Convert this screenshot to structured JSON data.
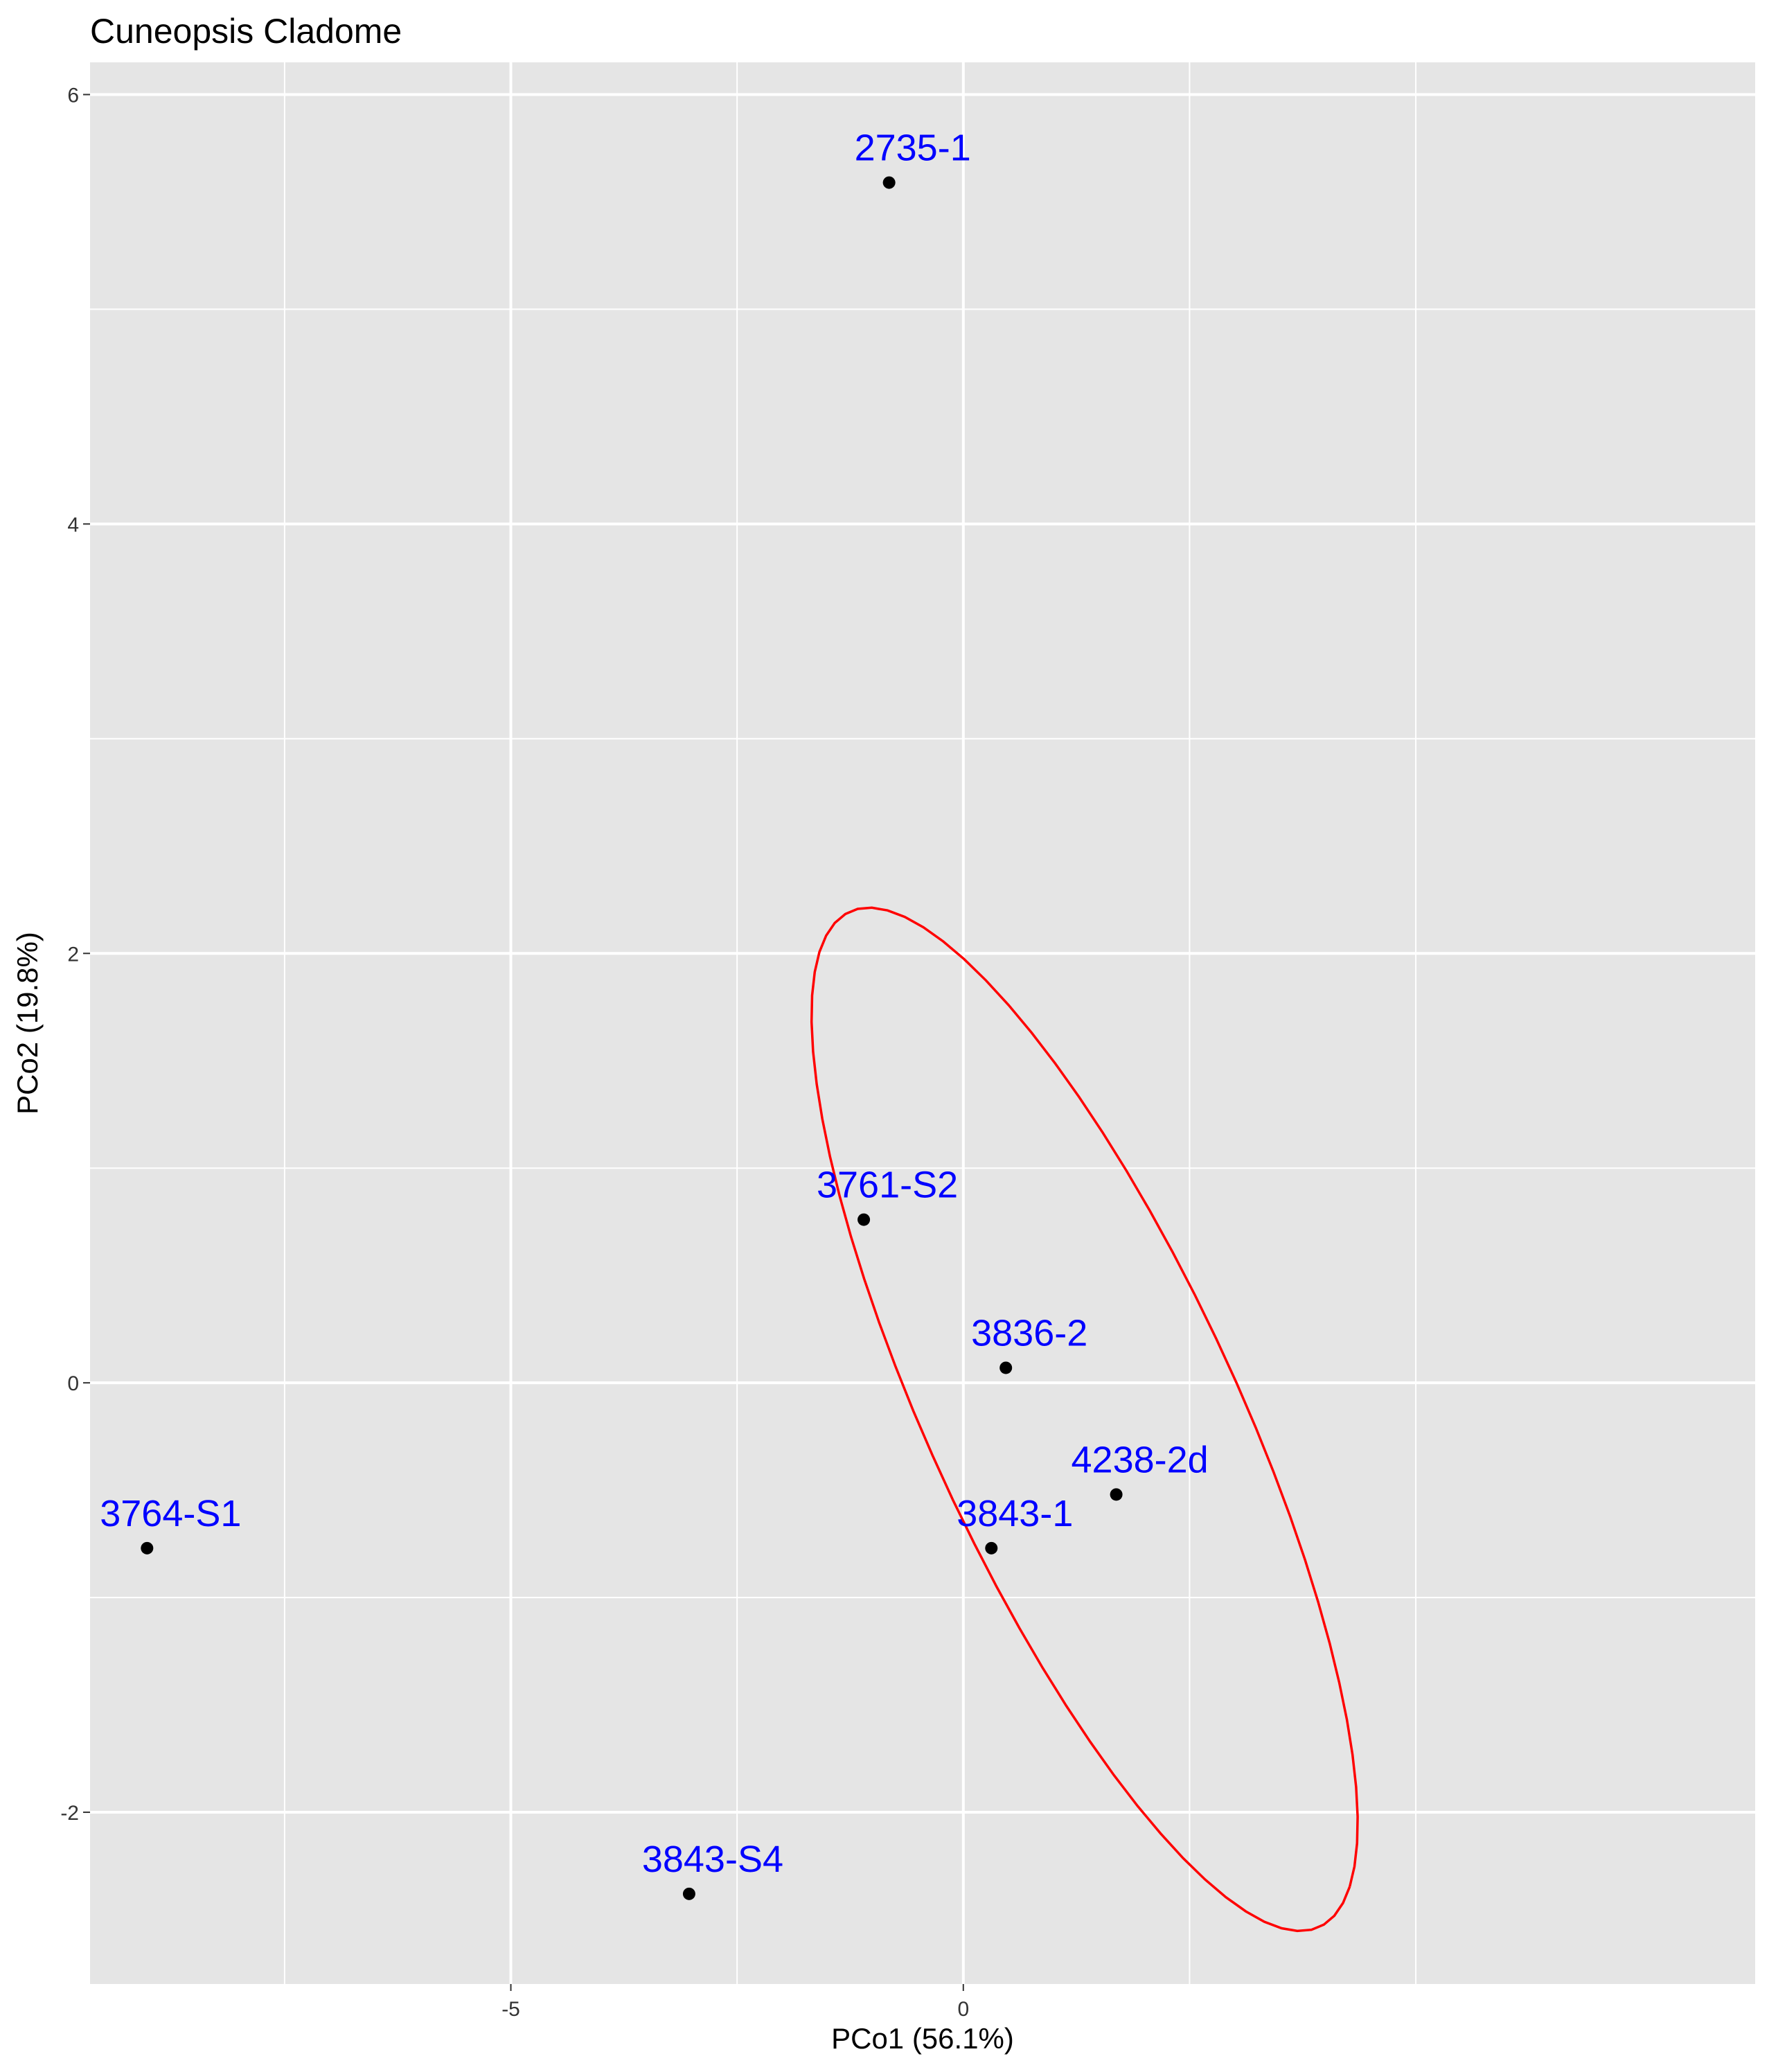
{
  "chart_data": {
    "type": "scatter",
    "title": "Cuneopsis Cladome",
    "xlabel": "PCo1 (56.1%)",
    "ylabel": "PCo2 (19.8%)",
    "xlim": [
      -9.65,
      8.75
    ],
    "ylim": [
      -2.8,
      6.15
    ],
    "x_ticks": [
      -5,
      0
    ],
    "y_ticks": [
      -2,
      0,
      2,
      4,
      6
    ],
    "x_minor_ticks": [
      -7.5,
      -2.5,
      2.5,
      5
    ],
    "y_minor_ticks": [
      -1,
      1,
      3,
      5
    ],
    "grid": true,
    "panel_background": "#e5e5e5",
    "grid_color": "#ffffff",
    "point_color": "#000000",
    "label_color": "#0000ff",
    "ellipse_color": "#ff0000",
    "points": [
      {
        "label": "2735-1",
        "x": -0.82,
        "y": 5.59
      },
      {
        "label": "3761-S2",
        "x": -1.1,
        "y": 0.76
      },
      {
        "label": "3836-2",
        "x": 0.47,
        "y": 0.07
      },
      {
        "label": "4238-2d",
        "x": 1.69,
        "y": -0.52
      },
      {
        "label": "3843-1",
        "x": 0.31,
        "y": -0.77
      },
      {
        "label": "3764-S1",
        "x": -9.02,
        "y": -0.77
      },
      {
        "label": "3843-S4",
        "x": -3.03,
        "y": -2.38
      }
    ],
    "ellipse": {
      "cx": 1.34,
      "cy": -0.17,
      "semi_major": 3.65,
      "semi_minor": 1.21,
      "angle_deg": -36.6
    }
  }
}
